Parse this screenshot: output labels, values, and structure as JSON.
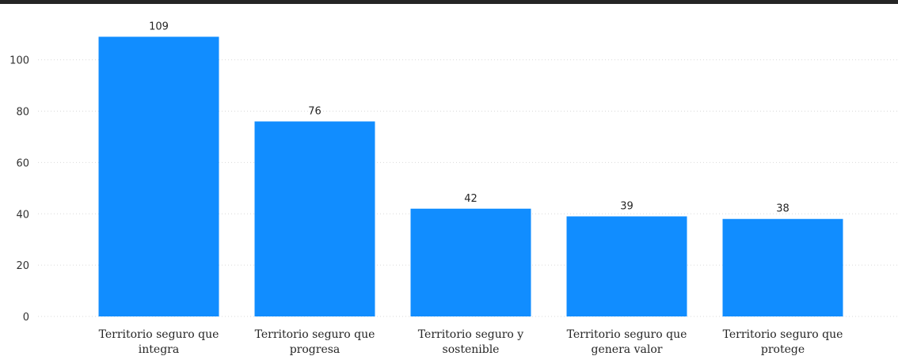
{
  "chart_data": {
    "type": "bar",
    "categories": [
      [
        "Territorio seguro que",
        "integra"
      ],
      [
        "Territorio seguro que",
        "progresa"
      ],
      [
        "Territorio seguro y",
        "sostenible"
      ],
      [
        "Territorio seguro que",
        "genera valor"
      ],
      [
        "Territorio seguro que",
        "protege"
      ]
    ],
    "values": [
      109,
      76,
      42,
      39,
      38
    ],
    "ylim": [
      0,
      115
    ],
    "yticks": [
      0,
      20,
      40,
      60,
      80,
      100
    ],
    "grid": true,
    "bar_color": "#118DFF",
    "grid_color": "#D9D9D9",
    "title": "",
    "xlabel": "",
    "ylabel": ""
  }
}
